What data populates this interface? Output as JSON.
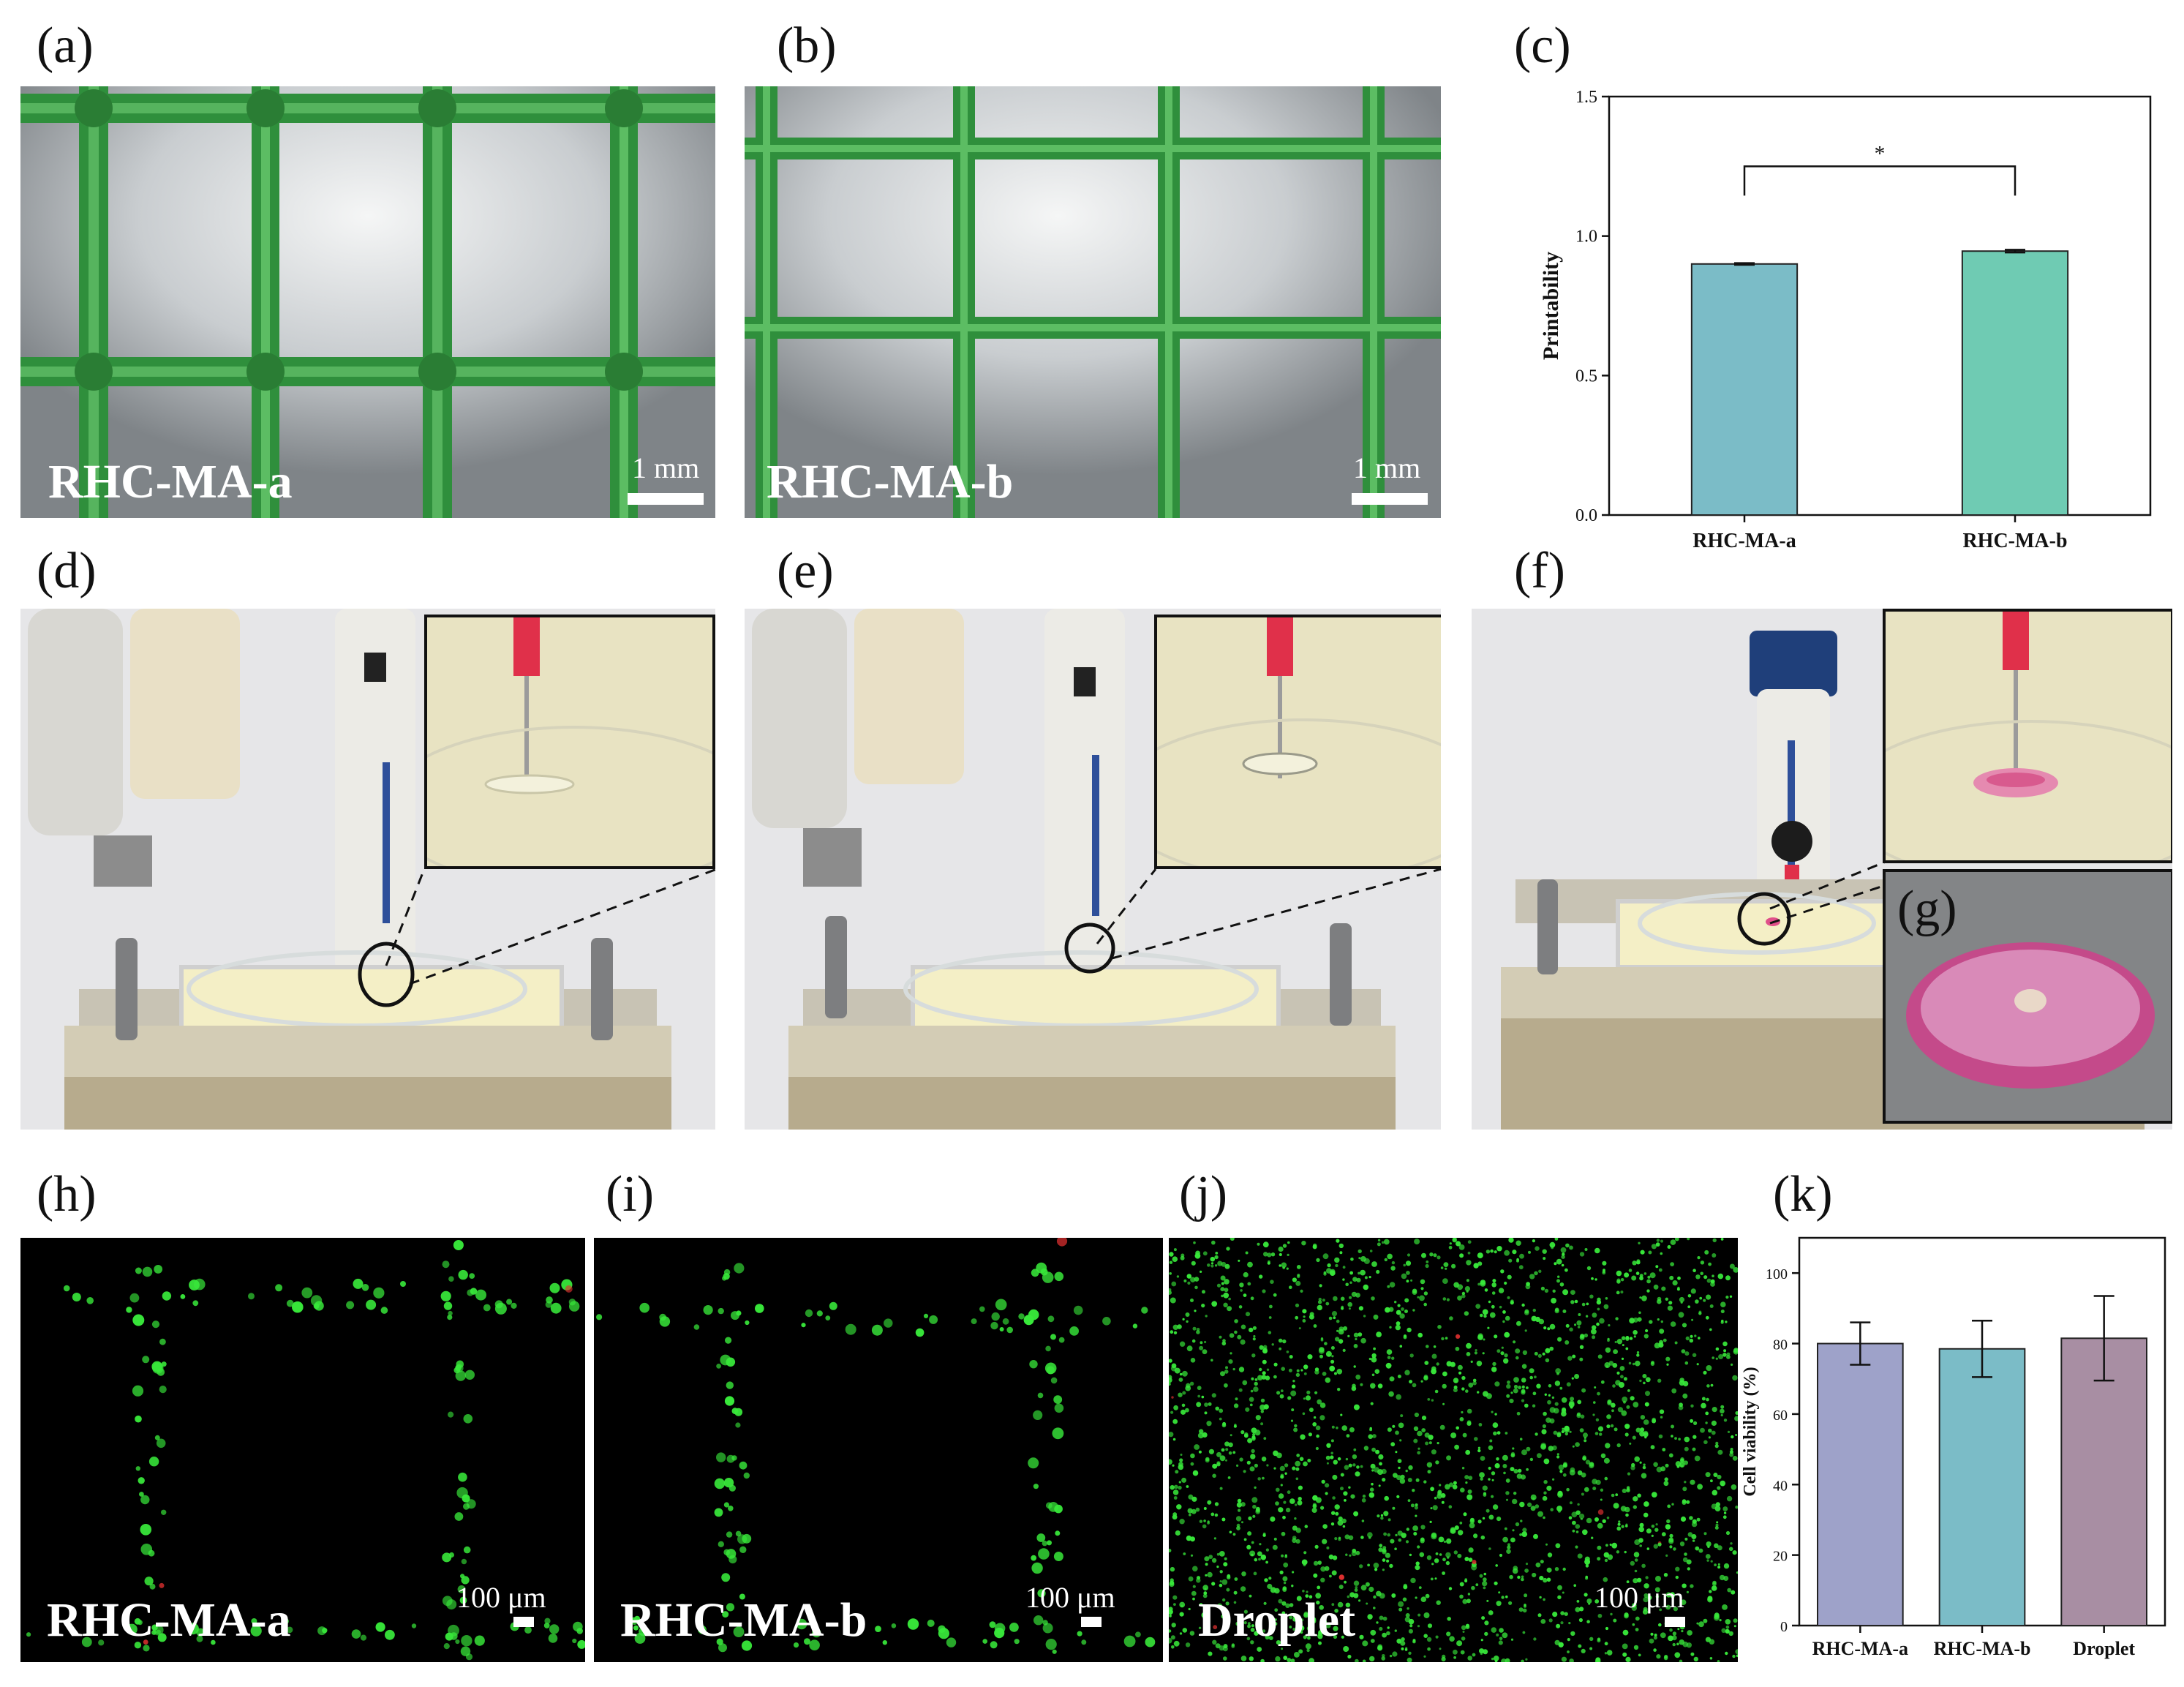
{
  "panels": {
    "a": {
      "letter": "(a)",
      "sample": "RHC-MA-a",
      "scale": "1 mm"
    },
    "b": {
      "letter": "(b)",
      "sample": "RHC-MA-b",
      "scale": "1 mm"
    },
    "c": {
      "letter": "(c)"
    },
    "d": {
      "letter": "(d)"
    },
    "e": {
      "letter": "(e)"
    },
    "f": {
      "letter": "(f)"
    },
    "g": {
      "letter": "(g)"
    },
    "h": {
      "letter": "(h)",
      "sample": "RHC-MA-a",
      "scale": "100 μm"
    },
    "i": {
      "letter": "(i)",
      "sample": "RHC-MA-b",
      "scale": "100 μm"
    },
    "j": {
      "letter": "(j)",
      "sample": "Droplet",
      "scale": "100 μm"
    },
    "k": {
      "letter": "(k)"
    }
  },
  "colors": {
    "grid_green": "#2f8f3c",
    "bar_teal": "#7bbcc7",
    "bar_mint": "#6fcbb3",
    "bar_lavender": "#9ea2c9",
    "bar_mauve": "#a88ea3",
    "live_cell": "#38e83a",
    "dead_cell": "#e03030"
  },
  "chart_data": [
    {
      "type": "bar",
      "panel": "c",
      "categories": [
        "RHC-MA-a",
        "RHC-MA-b"
      ],
      "values": [
        0.9,
        0.946
      ],
      "errors": [
        0.003,
        0.005
      ],
      "ylabel": "Printability",
      "ylim": [
        0,
        1.5
      ],
      "yticks": [
        "0.0",
        "0.5",
        "1.0",
        "1.5"
      ],
      "significance": "*",
      "bar_colors": [
        "#7bbcc7",
        "#6fcbb3"
      ]
    },
    {
      "type": "bar",
      "panel": "k",
      "categories": [
        "RHC-MA-a",
        "RHC-MA-b",
        "Droplet"
      ],
      "values": [
        80,
        78.5,
        81.5
      ],
      "errors": [
        6,
        8,
        12
      ],
      "ylabel": "Cell viability (%)",
      "ylim": [
        0,
        110
      ],
      "yticks": [
        "0",
        "20",
        "40",
        "60",
        "80",
        "100"
      ],
      "bar_colors": [
        "#9ea2c9",
        "#7bbcc7",
        "#a88ea3"
      ]
    }
  ]
}
